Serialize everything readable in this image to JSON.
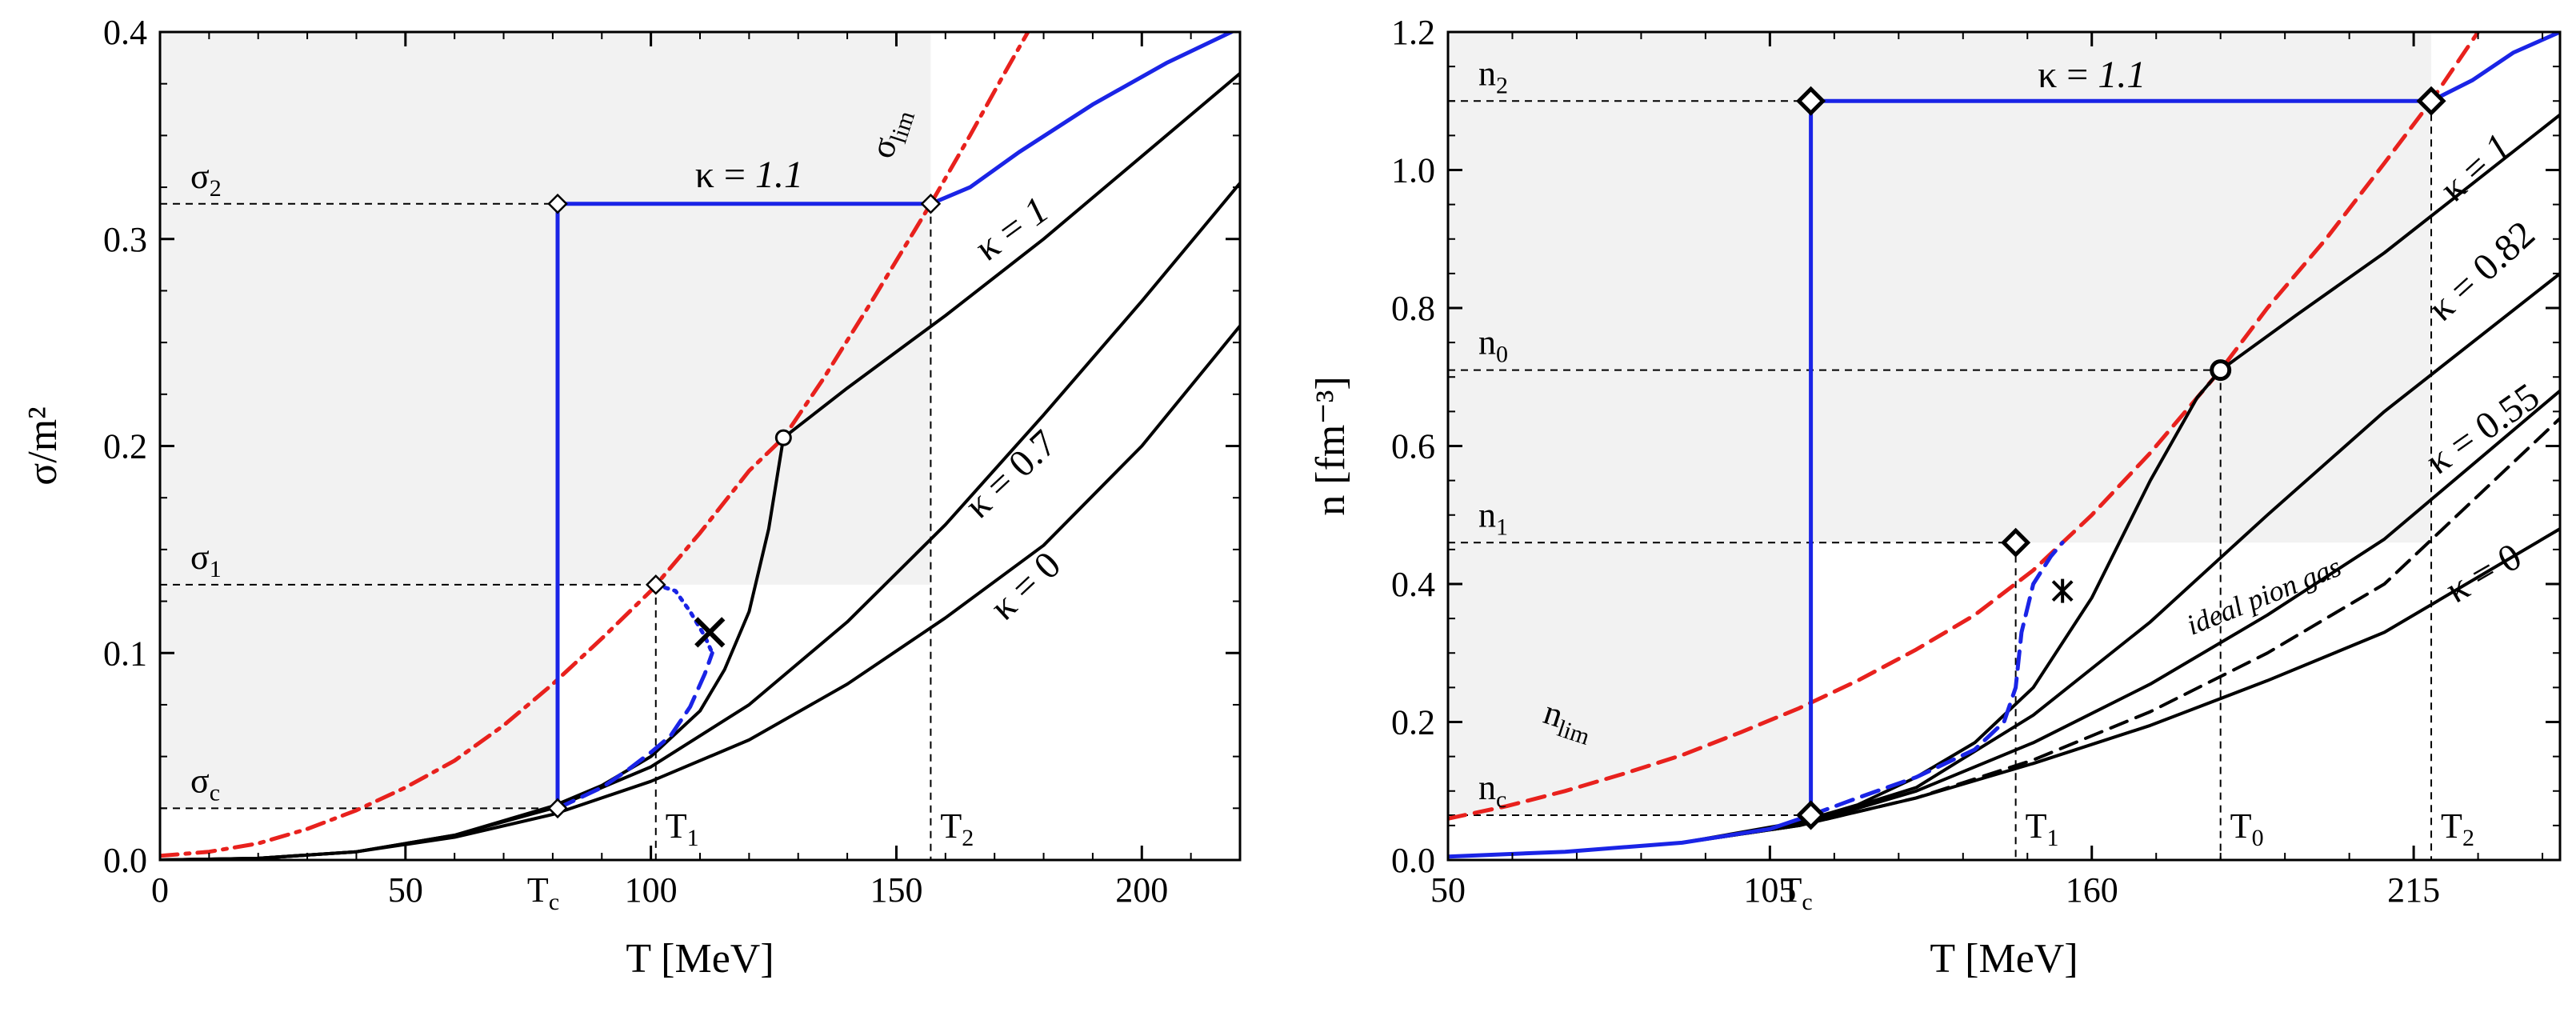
{
  "chart_data": [
    {
      "type": "line",
      "xlabel": "T [MeV]",
      "ylabel": "σ/m²",
      "xlim": [
        0,
        220
      ],
      "ylim": [
        0,
        0.4
      ],
      "xticks": [
        0,
        50,
        100,
        150,
        200
      ],
      "xtick_labels": [
        "0",
        "50",
        "100",
        "150",
        "200"
      ],
      "yticks": [
        0,
        0.1,
        0.2,
        0.3,
        0.4
      ],
      "ytick_labels": [
        "0.0",
        "0.1",
        "0.2",
        "0.3",
        "0.4"
      ],
      "shade": {
        "x": [
          0,
          157
        ],
        "y": [
          0.133,
          0.4
        ],
        "x2": [
          0,
          81
        ],
        "y2": [
          0.025,
          0.133
        ]
      },
      "hlines": [
        {
          "label": "σ",
          "sub": "2",
          "y": 0.317,
          "x_to": 157
        },
        {
          "label": "σ",
          "sub": "1",
          "y": 0.133,
          "x_to": 101
        },
        {
          "label": "σ",
          "sub": "c",
          "y": 0.025,
          "x_to": 81
        }
      ],
      "vlines": [
        {
          "label": "T",
          "sub": "1",
          "x": 101,
          "y_to": 0.133
        },
        {
          "label": "T",
          "sub": "2",
          "x": 157,
          "y_to": 0.317
        }
      ],
      "tc": {
        "label": "T",
        "sub": "c",
        "x": 81
      },
      "series": [
        {
          "name": "σ_lim",
          "label": "σ",
          "sub": "lim",
          "style": "dashdot",
          "color": "#e8211d",
          "x": [
            0,
            10,
            20,
            30,
            40,
            50,
            60,
            70,
            80,
            90,
            100,
            110,
            120,
            127,
            135,
            145,
            157,
            165,
            172,
            178
          ],
          "y": [
            0.002,
            0.004,
            0.008,
            0.015,
            0.024,
            0.035,
            0.048,
            0.065,
            0.085,
            0.107,
            0.13,
            0.158,
            0.188,
            0.204,
            0.232,
            0.27,
            0.317,
            0.35,
            0.38,
            0.405
          ]
        },
        {
          "name": "kappa-0",
          "label": "κ = 0",
          "style": "solid",
          "color": "#000000",
          "x": [
            0,
            20,
            40,
            60,
            80,
            100,
            120,
            140,
            160,
            180,
            200,
            220
          ],
          "y": [
            0,
            0.0008,
            0.004,
            0.011,
            0.022,
            0.038,
            0.058,
            0.085,
            0.117,
            0.152,
            0.2,
            0.258
          ]
        },
        {
          "name": "kappa-0.7",
          "label": "κ = 0.7",
          "style": "solid",
          "color": "#000000",
          "x": [
            0,
            20,
            40,
            60,
            80,
            100,
            120,
            140,
            160,
            180,
            200,
            220
          ],
          "y": [
            0,
            0.0008,
            0.004,
            0.012,
            0.025,
            0.045,
            0.075,
            0.115,
            0.162,
            0.215,
            0.27,
            0.327
          ]
        },
        {
          "name": "kappa-1",
          "label": "κ = 1",
          "style": "solid",
          "color": "#000000",
          "x": [
            0,
            20,
            40,
            60,
            80,
            90,
            100,
            110,
            115,
            120,
            124,
            127,
            140,
            160,
            180,
            200,
            220
          ],
          "y": [
            0,
            0.0008,
            0.004,
            0.012,
            0.026,
            0.036,
            0.05,
            0.072,
            0.092,
            0.12,
            0.16,
            0.204,
            0.228,
            0.263,
            0.3,
            0.34,
            0.38
          ]
        },
        {
          "name": "kappa-1.1",
          "label": "κ = 1.1",
          "style": "solid",
          "color": "#1a24e6",
          "x": [
            81,
            81,
            157,
            165,
            175,
            190,
            205,
            220
          ],
          "y": [
            0.025,
            0.317,
            0.317,
            0.325,
            0.342,
            0.365,
            0.385,
            0.402
          ]
        },
        {
          "name": "kappa-1.1-metastable",
          "style": "dotted",
          "color": "#1a24e6",
          "x": [
            101,
            105,
            108,
            111,
            112.5
          ],
          "y": [
            0.133,
            0.13,
            0.12,
            0.108,
            0.1
          ]
        },
        {
          "name": "kappa-1.1-dashed",
          "style": "dashed",
          "color": "#1a24e6",
          "x": [
            81,
            90,
            95,
            100,
            104,
            108,
            111,
            112.5
          ],
          "y": [
            0.025,
            0.035,
            0.043,
            0.052,
            0.06,
            0.074,
            0.09,
            0.1
          ]
        }
      ],
      "markers": [
        {
          "shape": "diamond-small",
          "x": 81,
          "y": 0.317
        },
        {
          "shape": "diamond-small",
          "x": 157,
          "y": 0.317
        },
        {
          "shape": "diamond-small",
          "x": 101,
          "y": 0.133
        },
        {
          "shape": "diamond-small",
          "x": 81,
          "y": 0.025
        },
        {
          "shape": "circle-small",
          "x": 127,
          "y": 0.204
        },
        {
          "shape": "cross",
          "x": 112,
          "y": 0.11
        }
      ],
      "curve_labels": [
        {
          "text": "κ = ",
          "italic": "1.1",
          "x": 120,
          "y": 0.325,
          "angle": 0
        },
        {
          "text": "κ = ",
          "italic": "1",
          "x": 175,
          "y": 0.3,
          "angle": -36
        },
        {
          "text": "κ = 0.7",
          "x": 175,
          "y": 0.182,
          "angle": -43
        },
        {
          "text": "κ = 0",
          "x": 178,
          "y": 0.128,
          "angle": -43
        }
      ]
    },
    {
      "type": "line",
      "xlabel": "T [MeV]",
      "ylabel": "n [fm⁻³]",
      "xlim": [
        50,
        240
      ],
      "ylim": [
        0,
        1.2
      ],
      "xticks": [
        50,
        105,
        160,
        215
      ],
      "xtick_labels": [
        "50",
        "105",
        "160",
        "215"
      ],
      "yticks": [
        0,
        0.2,
        0.4,
        0.6,
        0.8,
        1.0,
        1.2
      ],
      "ytick_labels": [
        "0.0",
        "0.2",
        "0.4",
        "0.6",
        "0.8",
        "1.0",
        "1.2"
      ],
      "shade": {
        "x": [
          50,
          218
        ],
        "y": [
          0.46,
          1.2
        ],
        "x2": [
          50,
          112
        ],
        "y2": [
          0.065,
          0.46
        ]
      },
      "hlines": [
        {
          "label": "n",
          "sub": "2",
          "y": 1.1,
          "x_to": 218
        },
        {
          "label": "n",
          "sub": "0",
          "y": 0.71,
          "x_to": 182
        },
        {
          "label": "n",
          "sub": "1",
          "y": 0.46,
          "x_to": 147
        },
        {
          "label": "n",
          "sub": "c",
          "y": 0.065,
          "x_to": 112
        }
      ],
      "vlines": [
        {
          "label": "T",
          "sub": "1",
          "x": 147,
          "y_to": 0.46
        },
        {
          "label": "T",
          "sub": "0",
          "x": 182,
          "y_to": 0.71
        },
        {
          "label": "T",
          "sub": "2",
          "x": 218,
          "y_to": 1.1
        }
      ],
      "tc": {
        "label": "T",
        "sub": "c",
        "x": 112
      },
      "series": [
        {
          "name": "n_lim",
          "label": "n",
          "sub": "lim",
          "style": "dashed",
          "color": "#e8211d",
          "x": [
            50,
            60,
            70,
            80,
            90,
            100,
            110,
            120,
            130,
            140,
            150,
            160,
            170,
            182,
            190,
            200,
            210,
            218,
            226
          ],
          "y": [
            0.06,
            0.078,
            0.1,
            0.125,
            0.152,
            0.185,
            0.22,
            0.26,
            0.305,
            0.355,
            0.42,
            0.5,
            0.59,
            0.71,
            0.8,
            0.9,
            1.01,
            1.1,
            1.2
          ]
        },
        {
          "name": "kappa-0",
          "label": "κ = 0",
          "style": "solid",
          "color": "#000000",
          "x": [
            50,
            70,
            90,
            110,
            130,
            150,
            170,
            190,
            210,
            240
          ],
          "y": [
            0.005,
            0.012,
            0.025,
            0.05,
            0.09,
            0.14,
            0.195,
            0.26,
            0.33,
            0.48
          ]
        },
        {
          "name": "ideal-pion-gas",
          "label": "ideal pion gas",
          "style": "dashed",
          "color": "#000000",
          "x": [
            50,
            70,
            90,
            110,
            130,
            150,
            170,
            190,
            210,
            240
          ],
          "y": [
            0.005,
            0.012,
            0.025,
            0.05,
            0.09,
            0.145,
            0.215,
            0.3,
            0.4,
            0.64
          ]
        },
        {
          "name": "kappa-0.55",
          "label": "κ = 0.55",
          "style": "solid",
          "color": "#000000",
          "x": [
            50,
            70,
            90,
            110,
            130,
            150,
            170,
            190,
            210,
            240
          ],
          "y": [
            0.005,
            0.012,
            0.025,
            0.05,
            0.1,
            0.17,
            0.255,
            0.355,
            0.465,
            0.68
          ]
        },
        {
          "name": "kappa-0.82",
          "label": "κ = 0.82",
          "style": "solid",
          "color": "#000000",
          "x": [
            50,
            70,
            90,
            110,
            130,
            150,
            170,
            190,
            210,
            240
          ],
          "y": [
            0.005,
            0.012,
            0.025,
            0.052,
            0.105,
            0.21,
            0.345,
            0.5,
            0.65,
            0.85
          ]
        },
        {
          "name": "kappa-1",
          "label": "κ = 1",
          "style": "solid",
          "color": "#000000",
          "x": [
            50,
            70,
            90,
            110,
            120,
            130,
            140,
            150,
            160,
            170,
            178,
            182,
            195,
            210,
            225,
            240
          ],
          "y": [
            0.005,
            0.012,
            0.025,
            0.055,
            0.08,
            0.12,
            0.17,
            0.25,
            0.38,
            0.55,
            0.67,
            0.71,
            0.79,
            0.88,
            0.98,
            1.08
          ]
        },
        {
          "name": "kappa-1.1",
          "label": "κ = 1.1",
          "style": "solid",
          "color": "#1a24e6",
          "x": [
            50,
            70,
            90,
            105,
            112,
            112,
            218,
            225,
            232,
            240
          ],
          "y": [
            0.005,
            0.012,
            0.025,
            0.045,
            0.065,
            1.1,
            1.1,
            1.13,
            1.17,
            1.2
          ]
        },
        {
          "name": "kappa-1.1-dashed",
          "style": "dashed",
          "color": "#1a24e6",
          "x": [
            112,
            120,
            130,
            140,
            145,
            147,
            148,
            150,
            153,
            155
          ],
          "y": [
            0.065,
            0.09,
            0.12,
            0.16,
            0.2,
            0.25,
            0.33,
            0.4,
            0.44,
            0.46
          ]
        }
      ],
      "markers": [
        {
          "shape": "diamond-large",
          "x": 112,
          "y": 1.1
        },
        {
          "shape": "diamond-large",
          "x": 218,
          "y": 1.1
        },
        {
          "shape": "diamond-large",
          "x": 147,
          "y": 0.46
        },
        {
          "shape": "diamond-large",
          "x": 112,
          "y": 0.065
        },
        {
          "shape": "circle-large",
          "x": 182,
          "y": 0.71
        },
        {
          "shape": "star",
          "x": 155,
          "y": 0.39
        }
      ],
      "curve_labels": [
        {
          "text": "κ = ",
          "italic": "1.1",
          "x": 160,
          "y": 1.12,
          "angle": 0
        },
        {
          "text": "κ = ",
          "italic": "1",
          "x": 227,
          "y": 0.99,
          "angle": -42
        },
        {
          "text": "κ = 0.82",
          "x": 228,
          "y": 0.84,
          "angle": -42
        },
        {
          "text": "κ = 0.55",
          "x": 228,
          "y": 0.61,
          "angle": -35
        },
        {
          "text": "κ = 0",
          "x": 228,
          "y": 0.4,
          "angle": -30
        },
        {
          "text": "ideal pion gas",
          "x": 190,
          "y": 0.37,
          "angle": -22,
          "italic_all": true
        }
      ]
    }
  ]
}
